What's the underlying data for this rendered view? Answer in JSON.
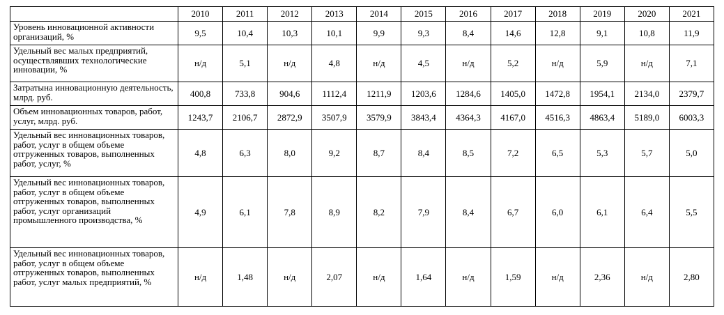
{
  "table": {
    "header": [
      "2010",
      "2011",
      "2012",
      "2013",
      "2014",
      "2015",
      "2016",
      "2017",
      "2018",
      "2019",
      "2020",
      "2021"
    ],
    "rows": [
      {
        "label": "Уровень инновационной активности организаций, %",
        "values": [
          "9,5",
          "10,4",
          "10,3",
          "10,1",
          "9,9",
          "9,3",
          "8,4",
          "14,6",
          "12,8",
          "9,1",
          "10,8",
          "11,9"
        ]
      },
      {
        "label": "Удельный вес малых предприятий, осуществлявших технологические инновации, %",
        "values": [
          "н/д",
          "5,1",
          "н/д",
          "4,8",
          "н/д",
          "4,5",
          "н/д",
          "5,2",
          "н/д",
          "5,9",
          "н/д",
          "7,1"
        ]
      },
      {
        "label": "Затратына инновационную деятельность, млрд. руб.",
        "values": [
          "400,8",
          "733,8",
          "904,6",
          "1112,4",
          "1211,9",
          "1203,6",
          "1284,6",
          "1405,0",
          "1472,8",
          "1954,1",
          "2134,0",
          "2379,7"
        ]
      },
      {
        "label": "Объем инновационных товаров, работ, услуг, млрд. руб.",
        "values": [
          "1243,7",
          "2106,7",
          "2872,9",
          "3507,9",
          "3579,9",
          "3843,4",
          "4364,3",
          "4167,0",
          "4516,3",
          "4863,4",
          "5189,0",
          "6003,3"
        ]
      },
      {
        "label": "Удельный вес инновационных товаров, работ, услуг в общем объеме отгруженных товаров, выполненных работ, услуг, %",
        "values": [
          "4,8",
          "6,3",
          "8,0",
          "9,2",
          "8,7",
          "8,4",
          "8,5",
          "7,2",
          "6,5",
          "5,3",
          "5,7",
          "5,0"
        ]
      },
      {
        "label": "Удельный вес инновационных товаров, работ, услуг в общем объеме отгруженных товаров, выполненных работ, услуг организаций промышленного производства, %",
        "values": [
          "4,9",
          "6,1",
          "7,8",
          "8,9",
          "8,2",
          "7,9",
          "8,4",
          "6,7",
          "6,0",
          "6,1",
          "6,4",
          "5,5"
        ]
      },
      {
        "label": "Удельный вес инновационных товаров, работ, услуг в общем объеме отгруженных товаров, выполненных работ, услуг малых предприятий, %",
        "values": [
          "н/д",
          "1,48",
          "н/д",
          "2,07",
          "н/д",
          "1,64",
          "н/д",
          "1,59",
          "н/д",
          "2,36",
          "н/д",
          "2,80"
        ]
      }
    ]
  }
}
